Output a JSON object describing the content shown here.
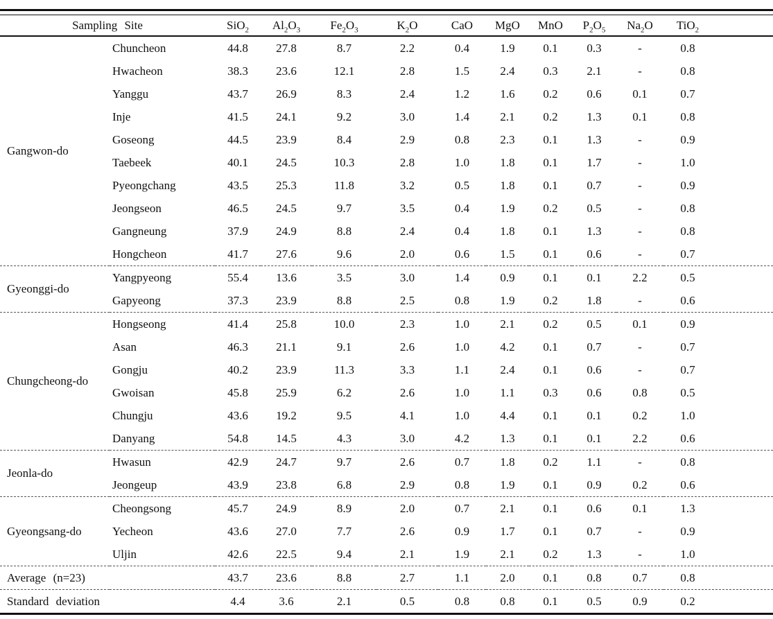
{
  "table": {
    "header": {
      "site_label": "Sampling Site",
      "oxides": [
        "SiO2",
        "Al2O3",
        "Fe2O3",
        "K2O",
        "CaO",
        "MgO",
        "MnO",
        "P2O5",
        "Na2O",
        "TiO2"
      ]
    },
    "groups": [
      {
        "region": "Gangwon-do",
        "rows": [
          {
            "site": "Chuncheon",
            "values": [
              "44.8",
              "27.8",
              "8.7",
              "2.2",
              "0.4",
              "1.9",
              "0.1",
              "0.3",
              "-",
              "0.8"
            ]
          },
          {
            "site": "Hwacheon",
            "values": [
              "38.3",
              "23.6",
              "12.1",
              "2.8",
              "1.5",
              "2.4",
              "0.3",
              "2.1",
              "-",
              "0.8"
            ]
          },
          {
            "site": "Yanggu",
            "values": [
              "43.7",
              "26.9",
              "8.3",
              "2.4",
              "1.2",
              "1.6",
              "0.2",
              "0.6",
              "0.1",
              "0.7"
            ]
          },
          {
            "site": "Inje",
            "values": [
              "41.5",
              "24.1",
              "9.2",
              "3.0",
              "1.4",
              "2.1",
              "0.2",
              "1.3",
              "0.1",
              "0.8"
            ]
          },
          {
            "site": "Goseong",
            "values": [
              "44.5",
              "23.9",
              "8.4",
              "2.9",
              "0.8",
              "2.3",
              "0.1",
              "1.3",
              "-",
              "0.9"
            ]
          },
          {
            "site": "Taebeek",
            "values": [
              "40.1",
              "24.5",
              "10.3",
              "2.8",
              "1.0",
              "1.8",
              "0.1",
              "1.7",
              "-",
              "1.0"
            ]
          },
          {
            "site": "Pyeongchang",
            "values": [
              "43.5",
              "25.3",
              "11.8",
              "3.2",
              "0.5",
              "1.8",
              "0.1",
              "0.7",
              "-",
              "0.9"
            ]
          },
          {
            "site": "Jeongseon",
            "values": [
              "46.5",
              "24.5",
              "9.7",
              "3.5",
              "0.4",
              "1.9",
              "0.2",
              "0.5",
              "-",
              "0.8"
            ]
          },
          {
            "site": "Gangneung",
            "values": [
              "37.9",
              "24.9",
              "8.8",
              "2.4",
              "0.4",
              "1.8",
              "0.1",
              "1.3",
              "-",
              "0.8"
            ]
          },
          {
            "site": "Hongcheon",
            "values": [
              "41.7",
              "27.6",
              "9.6",
              "2.0",
              "0.6",
              "1.5",
              "0.1",
              "0.6",
              "-",
              "0.7"
            ]
          }
        ]
      },
      {
        "region": "Gyeonggi-do",
        "rows": [
          {
            "site": "Yangpyeong",
            "values": [
              "55.4",
              "13.6",
              "3.5",
              "3.0",
              "1.4",
              "0.9",
              "0.1",
              "0.1",
              "2.2",
              "0.5"
            ]
          },
          {
            "site": "Gapyeong",
            "values": [
              "37.3",
              "23.9",
              "8.8",
              "2.5",
              "0.8",
              "1.9",
              "0.2",
              "1.8",
              "-",
              "0.6"
            ]
          }
        ]
      },
      {
        "region": "Chungcheong-do",
        "rows": [
          {
            "site": "Hongseong",
            "values": [
              "41.4",
              "25.8",
              "10.0",
              "2.3",
              "1.0",
              "2.1",
              "0.2",
              "0.5",
              "0.1",
              "0.9"
            ]
          },
          {
            "site": "Asan",
            "values": [
              "46.3",
              "21.1",
              "9.1",
              "2.6",
              "1.0",
              "4.2",
              "0.1",
              "0.7",
              "-",
              "0.7"
            ]
          },
          {
            "site": "Gongju",
            "values": [
              "40.2",
              "23.9",
              "11.3",
              "3.3",
              "1.1",
              "2.4",
              "0.1",
              "0.6",
              "-",
              "0.7"
            ]
          },
          {
            "site": "Gwoisan",
            "values": [
              "45.8",
              "25.9",
              "6.2",
              "2.6",
              "1.0",
              "1.1",
              "0.3",
              "0.6",
              "0.8",
              "0.5"
            ]
          },
          {
            "site": "Chungju",
            "values": [
              "43.6",
              "19.2",
              "9.5",
              "4.1",
              "1.0",
              "4.4",
              "0.1",
              "0.1",
              "0.2",
              "1.0"
            ]
          },
          {
            "site": "Danyang",
            "values": [
              "54.8",
              "14.5",
              "4.3",
              "3.0",
              "4.2",
              "1.3",
              "0.1",
              "0.1",
              "2.2",
              "0.6"
            ]
          }
        ]
      },
      {
        "region": "Jeonla-do",
        "rows": [
          {
            "site": "Hwasun",
            "values": [
              "42.9",
              "24.7",
              "9.7",
              "2.6",
              "0.7",
              "1.8",
              "0.2",
              "1.1",
              "-",
              "0.8"
            ]
          },
          {
            "site": "Jeongeup",
            "values": [
              "43.9",
              "23.8",
              "6.8",
              "2.9",
              "0.8",
              "1.9",
              "0.1",
              "0.9",
              "0.2",
              "0.6"
            ]
          }
        ]
      },
      {
        "region": "Gyeongsang-do",
        "rows": [
          {
            "site": "Cheongsong",
            "values": [
              "45.7",
              "24.9",
              "8.9",
              "2.0",
              "0.7",
              "2.1",
              "0.1",
              "0.6",
              "0.1",
              "1.3"
            ]
          },
          {
            "site": "Yecheon",
            "values": [
              "43.6",
              "27.0",
              "7.7",
              "2.6",
              "0.9",
              "1.7",
              "0.1",
              "0.7",
              "-",
              "0.9"
            ]
          },
          {
            "site": "Uljin",
            "values": [
              "42.6",
              "22.5",
              "9.4",
              "2.1",
              "1.9",
              "2.1",
              "0.2",
              "1.3",
              "-",
              "1.0"
            ]
          }
        ]
      }
    ],
    "summary": [
      {
        "label": "Average (n=23)",
        "values": [
          "43.7",
          "23.6",
          "8.8",
          "2.7",
          "1.1",
          "2.0",
          "0.1",
          "0.8",
          "0.7",
          "0.8"
        ]
      },
      {
        "label": "Standard deviation",
        "values": [
          "4.4",
          "3.6",
          "2.1",
          "0.5",
          "0.8",
          "0.8",
          "0.1",
          "0.5",
          "0.9",
          "0.2"
        ]
      }
    ]
  },
  "colors": {
    "text": "#111111",
    "rule": "#111111",
    "dashed_rule": "#555555",
    "background": "#ffffff"
  }
}
